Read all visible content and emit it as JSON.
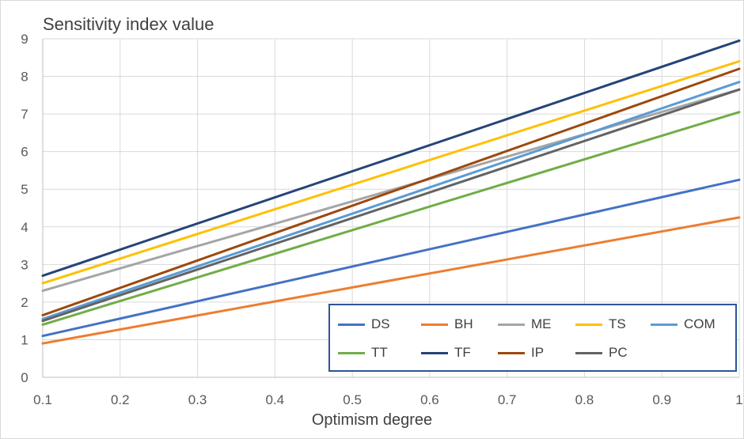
{
  "chart_data": {
    "type": "line",
    "title": "Sensitivity index value",
    "xlabel": "Optimism degree",
    "ylabel": "",
    "xlim": [
      0.1,
      1
    ],
    "ylim": [
      0,
      9
    ],
    "x_ticks": [
      "0.1",
      "0.2",
      "0.3",
      "0.4",
      "0.5",
      "0.6",
      "0.7",
      "0.8",
      "0.9",
      "1"
    ],
    "y_ticks": [
      "0",
      "1",
      "2",
      "3",
      "4",
      "5",
      "6",
      "7",
      "8",
      "9"
    ],
    "grid": true,
    "legend_position": "bottom-right",
    "x": [
      0.1,
      1
    ],
    "series": [
      {
        "name": "DS",
        "color": "#4472c4",
        "values": [
          1.1,
          5.25
        ]
      },
      {
        "name": "BH",
        "color": "#ed7d31",
        "values": [
          0.9,
          4.25
        ]
      },
      {
        "name": "ME",
        "color": "#a5a5a5",
        "values": [
          2.3,
          7.65
        ]
      },
      {
        "name": "TS",
        "color": "#ffc000",
        "values": [
          2.5,
          8.4
        ]
      },
      {
        "name": "COM",
        "color": "#5b9bd5",
        "values": [
          1.55,
          7.85
        ]
      },
      {
        "name": "TT",
        "color": "#70ad47",
        "values": [
          1.4,
          7.05
        ]
      },
      {
        "name": "TF",
        "color": "#264478",
        "values": [
          2.7,
          8.95
        ]
      },
      {
        "name": "IP",
        "color": "#9e480e",
        "values": [
          1.65,
          8.2
        ]
      },
      {
        "name": "PC",
        "color": "#636363",
        "values": [
          1.5,
          7.65
        ]
      }
    ]
  }
}
